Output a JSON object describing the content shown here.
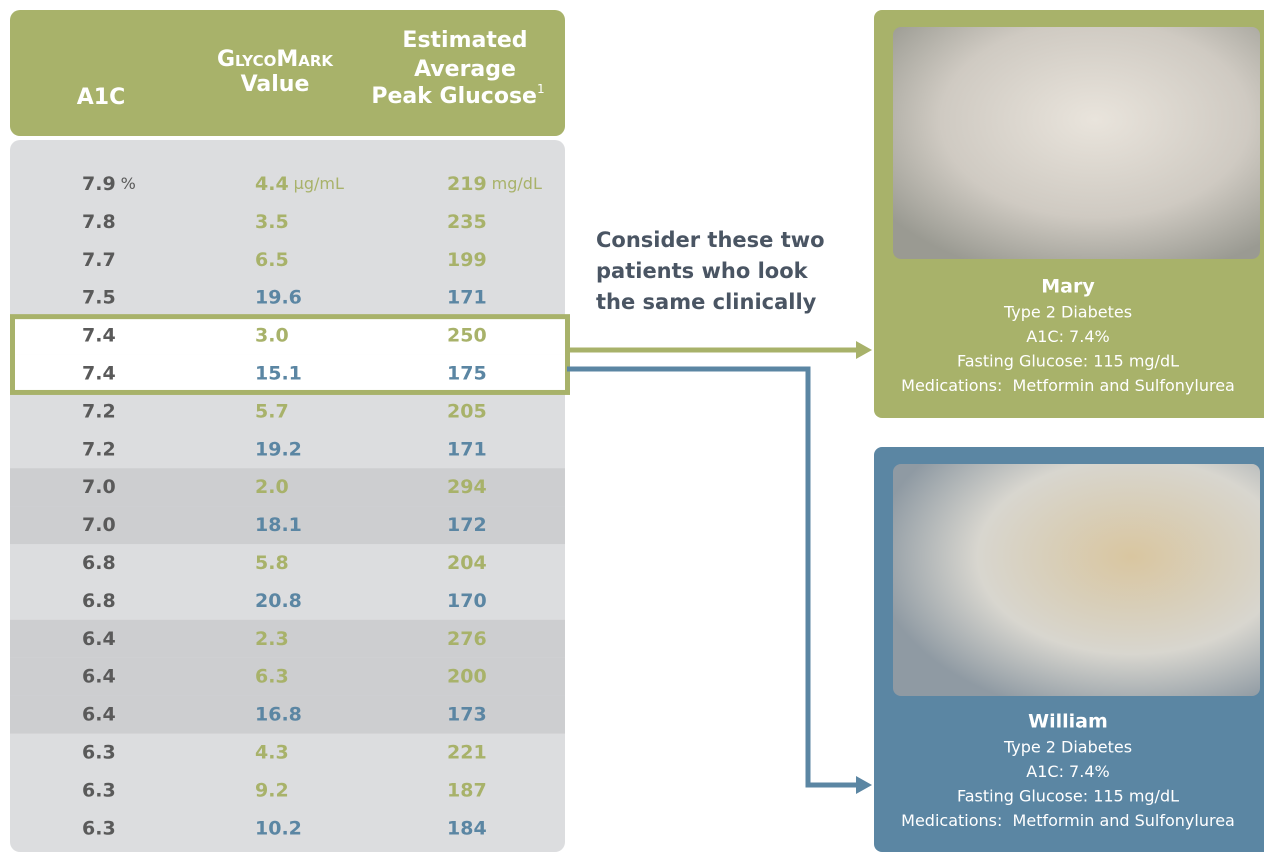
{
  "table": {
    "headers": {
      "a1c": "A1C",
      "glycomark": [
        "GlycoMark",
        "Value"
      ],
      "peak": [
        "Estimated",
        "Average",
        "Peak Glucose"
      ],
      "footnote": "1"
    },
    "header_color": "#a8b26a",
    "units": {
      "a1c": "%",
      "glycomark": "µg/mL",
      "peak": "mg/dL"
    },
    "rows": [
      {
        "a1c": "7.9",
        "glycomark": "4.4",
        "peak": "219",
        "color": "#a8b26a",
        "shaded": false,
        "highlighted": false
      },
      {
        "a1c": "7.8",
        "glycomark": "3.5",
        "peak": "235",
        "color": "#a8b26a",
        "shaded": false,
        "highlighted": false
      },
      {
        "a1c": "7.7",
        "glycomark": "6.5",
        "peak": "199",
        "color": "#a8b26a",
        "shaded": false,
        "highlighted": false
      },
      {
        "a1c": "7.5",
        "glycomark": "19.6",
        "peak": "171",
        "color": "#5b86a3",
        "shaded": false,
        "highlighted": false
      },
      {
        "a1c": "7.4",
        "glycomark": "3.0",
        "peak": "250",
        "color": "#a8b26a",
        "shaded": false,
        "highlighted": true
      },
      {
        "a1c": "7.4",
        "glycomark": "15.1",
        "peak": "175",
        "color": "#5b86a3",
        "shaded": false,
        "highlighted": true
      },
      {
        "a1c": "7.2",
        "glycomark": "5.7",
        "peak": "205",
        "color": "#a8b26a",
        "shaded": false,
        "highlighted": false
      },
      {
        "a1c": "7.2",
        "glycomark": "19.2",
        "peak": "171",
        "color": "#5b86a3",
        "shaded": false,
        "highlighted": false
      },
      {
        "a1c": "7.0",
        "glycomark": "2.0",
        "peak": "294",
        "color": "#a8b26a",
        "shaded": true,
        "highlighted": false
      },
      {
        "a1c": "7.0",
        "glycomark": "18.1",
        "peak": "172",
        "color": "#5b86a3",
        "shaded": true,
        "highlighted": false
      },
      {
        "a1c": "6.8",
        "glycomark": "5.8",
        "peak": "204",
        "color": "#a8b26a",
        "shaded": false,
        "highlighted": false
      },
      {
        "a1c": "6.8",
        "glycomark": "20.8",
        "peak": "170",
        "color": "#5b86a3",
        "shaded": false,
        "highlighted": false
      },
      {
        "a1c": "6.4",
        "glycomark": "2.3",
        "peak": "276",
        "color": "#a8b26a",
        "shaded": true,
        "highlighted": false
      },
      {
        "a1c": "6.4",
        "glycomark": "6.3",
        "peak": "200",
        "color": "#a8b26a",
        "shaded": true,
        "highlighted": false
      },
      {
        "a1c": "6.4",
        "glycomark": "16.8",
        "peak": "173",
        "color": "#5b86a3",
        "shaded": true,
        "highlighted": false
      },
      {
        "a1c": "6.3",
        "glycomark": "4.3",
        "peak": "221",
        "color": "#a8b26a",
        "shaded": false,
        "highlighted": false
      },
      {
        "a1c": "6.3",
        "glycomark": "9.2",
        "peak": "187",
        "color": "#a8b26a",
        "shaded": false,
        "highlighted": false
      },
      {
        "a1c": "6.3",
        "glycomark": "10.2",
        "peak": "184",
        "color": "#5b86a3",
        "shaded": false,
        "highlighted": false
      }
    ]
  },
  "callout": [
    "Consider these two",
    "patients who look",
    "the same clinically"
  ],
  "patients": [
    {
      "name": "Mary",
      "color": "#a8b26a",
      "lines": [
        "Type 2 Diabetes",
        "A1C: 7.4%",
        "Fasting Glucose: 115 mg/dL",
        "Medications:  Metformin and Sulfonylurea"
      ]
    },
    {
      "name": "William",
      "color": "#5b86a3",
      "lines": [
        "Type 2 Diabetes",
        "A1C: 7.4%",
        "Fasting Glucose: 115 mg/dL",
        "Medications:  Metformin and Sulfonylurea"
      ]
    }
  ]
}
